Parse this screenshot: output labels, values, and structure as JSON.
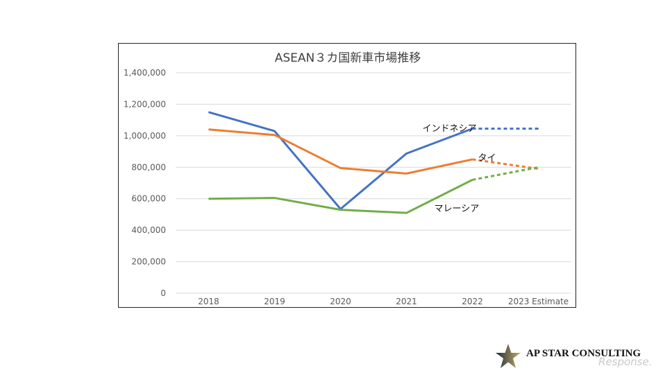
{
  "chart_data": {
    "type": "line",
    "title": "ASEAN３カ国新車市場推移",
    "categories": [
      "2018",
      "2019",
      "2020",
      "2021",
      "2022",
      "2023 Estimate"
    ],
    "y_ticks": [
      "0",
      "200,000",
      "400,000",
      "600,000",
      "800,000",
      "1,000,000",
      "1,200,000",
      "1,400,000"
    ],
    "ylim": [
      0,
      1400000
    ],
    "grid": true,
    "legend": "inline labels",
    "estimate_style": "dashed from 2022 to 2023 Estimate",
    "series": [
      {
        "name": "インドネシア",
        "color": "#4472C4",
        "values": [
          1150000,
          1030000,
          535000,
          887000,
          1045000,
          1045000
        ]
      },
      {
        "name": "タイ",
        "color": "#ED7D31",
        "values": [
          1040000,
          1005000,
          795000,
          760000,
          850000,
          790000
        ]
      },
      {
        "name": "マレーシア",
        "color": "#70AD47",
        "values": [
          600000,
          605000,
          530000,
          510000,
          720000,
          800000
        ]
      }
    ]
  },
  "logo": {
    "text": "AP STAR CONSULTING",
    "star_colors": [
      "#1f2a44",
      "#b79a4a"
    ]
  },
  "watermark": {
    "text": "Response."
  }
}
